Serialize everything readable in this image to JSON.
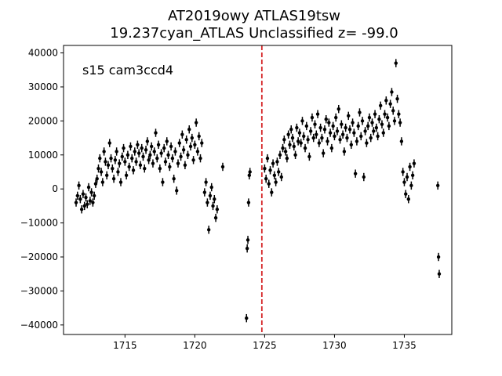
{
  "chart_data": {
    "type": "scatter",
    "title_lines": [
      "AT2019owy  ATLAS19tsw",
      "19.237cyan_ATLAS Unclassified z= -99.0"
    ],
    "xlabel": "",
    "ylabel": "",
    "annotation": "s15 cam3ccd4",
    "xlim": [
      1710.6,
      1738.4
    ],
    "ylim": [
      -42800,
      42200
    ],
    "x_ticks": [
      1715,
      1720,
      1725,
      1730,
      1735
    ],
    "y_ticks": [
      -40000,
      -30000,
      -20000,
      -10000,
      0,
      10000,
      20000,
      30000,
      40000
    ],
    "vline": {
      "x": 1724.8,
      "color": "#d62728",
      "style": "dashed"
    },
    "grid": false,
    "legend": "none",
    "marker_color": "#000000",
    "error_bar": 1200,
    "points": [
      [
        1711.5,
        -4000
      ],
      [
        1711.6,
        -2000
      ],
      [
        1711.7,
        1000
      ],
      [
        1711.8,
        -3000
      ],
      [
        1711.9,
        -6000
      ],
      [
        1712.0,
        -1500
      ],
      [
        1712.1,
        -5000
      ],
      [
        1712.2,
        -2500
      ],
      [
        1712.3,
        -4500
      ],
      [
        1712.4,
        500
      ],
      [
        1712.5,
        -3500
      ],
      [
        1712.6,
        -1000
      ],
      [
        1712.7,
        -4000
      ],
      [
        1712.8,
        -2000
      ],
      [
        1712.9,
        1500
      ],
      [
        1713.0,
        3000
      ],
      [
        1713.1,
        6000
      ],
      [
        1713.2,
        9000
      ],
      [
        1713.3,
        5000
      ],
      [
        1713.4,
        2000
      ],
      [
        1713.5,
        11000
      ],
      [
        1713.6,
        8000
      ],
      [
        1713.7,
        4000
      ],
      [
        1713.8,
        7000
      ],
      [
        1713.9,
        13500
      ],
      [
        1714.0,
        9000
      ],
      [
        1714.1,
        6000
      ],
      [
        1714.2,
        3000
      ],
      [
        1714.3,
        8500
      ],
      [
        1714.4,
        11000
      ],
      [
        1714.5,
        5000
      ],
      [
        1714.6,
        7500
      ],
      [
        1714.7,
        2000
      ],
      [
        1714.8,
        9500
      ],
      [
        1714.9,
        12000
      ],
      [
        1715.0,
        8000
      ],
      [
        1715.1,
        4000
      ],
      [
        1715.2,
        10000
      ],
      [
        1715.3,
        6500
      ],
      [
        1715.4,
        12500
      ],
      [
        1715.5,
        9000
      ],
      [
        1715.6,
        5500
      ],
      [
        1715.7,
        11000
      ],
      [
        1715.8,
        8000
      ],
      [
        1715.9,
        13000
      ],
      [
        1716.0,
        10500
      ],
      [
        1716.1,
        7000
      ],
      [
        1716.2,
        12000
      ],
      [
        1716.3,
        9500
      ],
      [
        1716.4,
        6000
      ],
      [
        1716.5,
        11500
      ],
      [
        1716.6,
        14000
      ],
      [
        1716.7,
        8500
      ],
      [
        1716.8,
        10000
      ],
      [
        1716.9,
        12500
      ],
      [
        1717.0,
        7500
      ],
      [
        1717.1,
        11000
      ],
      [
        1717.2,
        16500
      ],
      [
        1717.3,
        9000
      ],
      [
        1717.4,
        13000
      ],
      [
        1717.5,
        6000
      ],
      [
        1717.6,
        10500
      ],
      [
        1717.7,
        2000
      ],
      [
        1717.8,
        12000
      ],
      [
        1717.9,
        8000
      ],
      [
        1718.0,
        14000
      ],
      [
        1718.1,
        10000
      ],
      [
        1718.2,
        6500
      ],
      [
        1718.3,
        12500
      ],
      [
        1718.4,
        9000
      ],
      [
        1718.5,
        3000
      ],
      [
        1718.6,
        11000
      ],
      [
        1718.7,
        -500
      ],
      [
        1718.8,
        7500
      ],
      [
        1718.9,
        13500
      ],
      [
        1719.0,
        9500
      ],
      [
        1719.1,
        16000
      ],
      [
        1719.2,
        11500
      ],
      [
        1719.3,
        7000
      ],
      [
        1719.4,
        14500
      ],
      [
        1719.5,
        10000
      ],
      [
        1719.6,
        17500
      ],
      [
        1719.7,
        12500
      ],
      [
        1719.8,
        15000
      ],
      [
        1719.9,
        8500
      ],
      [
        1720.0,
        13000
      ],
      [
        1720.1,
        19500
      ],
      [
        1720.2,
        11000
      ],
      [
        1720.3,
        15500
      ],
      [
        1720.4,
        9000
      ],
      [
        1720.5,
        13500
      ],
      [
        1720.7,
        -1000
      ],
      [
        1720.8,
        2000
      ],
      [
        1720.9,
        -4000
      ],
      [
        1721.0,
        -12000
      ],
      [
        1721.1,
        -2000
      ],
      [
        1721.2,
        500
      ],
      [
        1721.3,
        -5000
      ],
      [
        1721.4,
        -3000
      ],
      [
        1721.5,
        -8500
      ],
      [
        1721.6,
        -6000
      ],
      [
        1722.0,
        6500
      ],
      [
        1723.7,
        -38000
      ],
      [
        1723.75,
        -17500
      ],
      [
        1723.8,
        -15000
      ],
      [
        1723.85,
        -4000
      ],
      [
        1723.9,
        4000
      ],
      [
        1723.95,
        5000
      ],
      [
        1725.0,
        6000
      ],
      [
        1725.1,
        3000
      ],
      [
        1725.2,
        9000
      ],
      [
        1725.3,
        1500
      ],
      [
        1725.4,
        5500
      ],
      [
        1725.5,
        -1000
      ],
      [
        1725.6,
        7500
      ],
      [
        1725.7,
        4000
      ],
      [
        1725.8,
        2000
      ],
      [
        1725.9,
        8000
      ],
      [
        1726.0,
        5000
      ],
      [
        1726.1,
        10000
      ],
      [
        1726.2,
        3500
      ],
      [
        1726.3,
        12000
      ],
      [
        1726.4,
        14500
      ],
      [
        1726.5,
        11000
      ],
      [
        1726.6,
        9000
      ],
      [
        1726.7,
        16000
      ],
      [
        1726.8,
        13000
      ],
      [
        1726.9,
        17500
      ],
      [
        1727.0,
        15000
      ],
      [
        1727.1,
        12500
      ],
      [
        1727.2,
        10000
      ],
      [
        1727.3,
        18000
      ],
      [
        1727.4,
        14000
      ],
      [
        1727.5,
        16500
      ],
      [
        1727.6,
        13500
      ],
      [
        1727.7,
        20000
      ],
      [
        1727.8,
        15500
      ],
      [
        1727.9,
        12000
      ],
      [
        1728.0,
        18500
      ],
      [
        1728.1,
        14500
      ],
      [
        1728.2,
        9500
      ],
      [
        1728.3,
        17000
      ],
      [
        1728.4,
        21000
      ],
      [
        1728.5,
        15000
      ],
      [
        1728.6,
        19000
      ],
      [
        1728.7,
        16000
      ],
      [
        1728.8,
        22000
      ],
      [
        1728.9,
        13500
      ],
      [
        1729.0,
        18000
      ],
      [
        1729.1,
        15000
      ],
      [
        1729.2,
        10500
      ],
      [
        1729.3,
        17500
      ],
      [
        1729.4,
        20500
      ],
      [
        1729.5,
        14000
      ],
      [
        1729.6,
        19500
      ],
      [
        1729.7,
        16500
      ],
      [
        1729.8,
        12000
      ],
      [
        1729.9,
        18500
      ],
      [
        1730.0,
        15500
      ],
      [
        1730.1,
        21000
      ],
      [
        1730.2,
        17000
      ],
      [
        1730.3,
        23500
      ],
      [
        1730.4,
        14500
      ],
      [
        1730.5,
        19000
      ],
      [
        1730.6,
        16000
      ],
      [
        1730.7,
        11000
      ],
      [
        1730.8,
        18000
      ],
      [
        1730.9,
        15000
      ],
      [
        1731.0,
        21500
      ],
      [
        1731.1,
        17500
      ],
      [
        1731.2,
        13000
      ],
      [
        1731.3,
        19500
      ],
      [
        1731.4,
        16500
      ],
      [
        1731.5,
        4500
      ],
      [
        1731.6,
        14000
      ],
      [
        1731.7,
        18500
      ],
      [
        1731.8,
        22500
      ],
      [
        1731.9,
        15500
      ],
      [
        1732.0,
        20000
      ],
      [
        1732.1,
        3500
      ],
      [
        1732.2,
        17000
      ],
      [
        1732.3,
        13500
      ],
      [
        1732.4,
        18500
      ],
      [
        1732.5,
        21000
      ],
      [
        1732.6,
        15000
      ],
      [
        1732.7,
        19500
      ],
      [
        1732.8,
        17000
      ],
      [
        1732.9,
        22000
      ],
      [
        1733.0,
        18000
      ],
      [
        1733.1,
        15500
      ],
      [
        1733.2,
        20500
      ],
      [
        1733.3,
        24500
      ],
      [
        1733.4,
        19000
      ],
      [
        1733.5,
        16500
      ],
      [
        1733.6,
        22000
      ],
      [
        1733.7,
        26000
      ],
      [
        1733.8,
        21000
      ],
      [
        1733.9,
        18500
      ],
      [
        1734.0,
        25000
      ],
      [
        1734.1,
        28500
      ],
      [
        1734.2,
        23000
      ],
      [
        1734.3,
        20000
      ],
      [
        1734.4,
        37000
      ],
      [
        1734.5,
        26500
      ],
      [
        1734.6,
        22000
      ],
      [
        1734.7,
        19500
      ],
      [
        1734.8,
        14000
      ],
      [
        1734.9,
        5000
      ],
      [
        1735.0,
        2000
      ],
      [
        1735.1,
        -1500
      ],
      [
        1735.2,
        3500
      ],
      [
        1735.3,
        -3000
      ],
      [
        1735.4,
        6500
      ],
      [
        1735.5,
        1000
      ],
      [
        1735.6,
        4000
      ],
      [
        1735.7,
        7500
      ],
      [
        1737.4,
        1000
      ],
      [
        1737.45,
        -20000
      ],
      [
        1737.5,
        -25000
      ]
    ]
  }
}
